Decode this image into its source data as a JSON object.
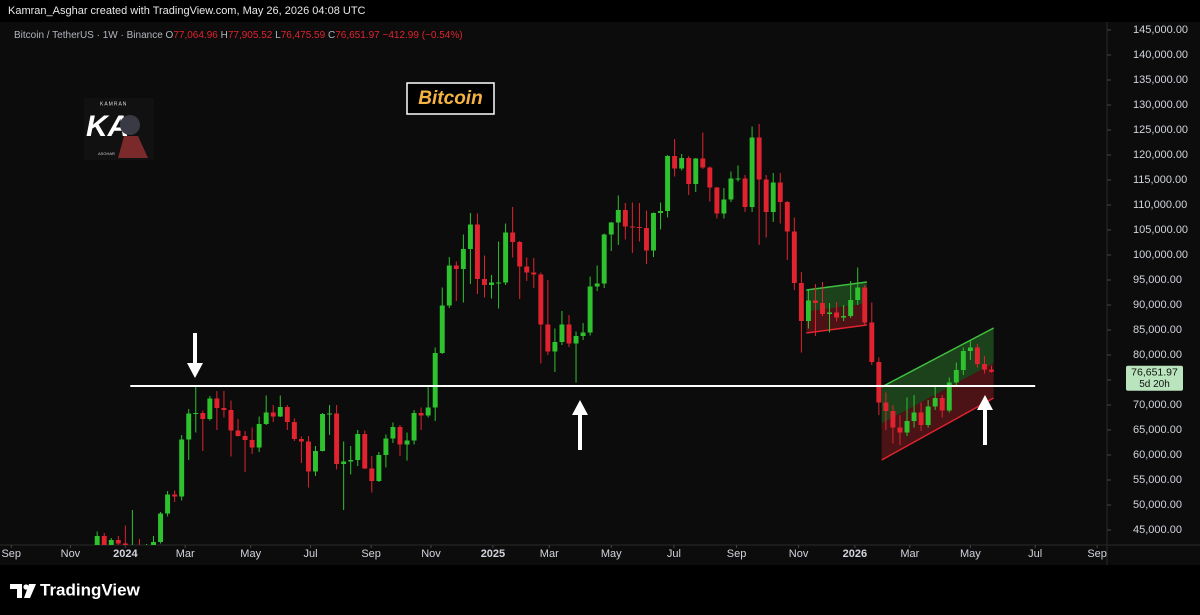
{
  "header": {
    "credit": "Kamran_Asghar created with TradingView.com, May 26, 2026 04:08 UTC"
  },
  "chart_data": {
    "type": "candlestick",
    "symbol": "Bitcoin / TetherUS · 1W · Binance",
    "ohlc_legend": [
      {
        "label": "O",
        "value": "77,064.96"
      },
      {
        "label": "H",
        "value": "77,905.52"
      },
      {
        "label": "L",
        "value": "76,475.59"
      },
      {
        "label": "C",
        "value": "76,651.97"
      }
    ],
    "change": "−412.99 (−0.54%)",
    "title": "Bitcoin",
    "up_color": "#2ec22e",
    "down_color": "#e0232f",
    "x": [
      -4,
      -3,
      -2,
      -1,
      0,
      1,
      2,
      3,
      4,
      5,
      6,
      7,
      8,
      9,
      10,
      11,
      12,
      13,
      14,
      15,
      16,
      17,
      18,
      19,
      20,
      21,
      22,
      23,
      24,
      25,
      26,
      27,
      28,
      29,
      30,
      31,
      32,
      33,
      34,
      35,
      36,
      37,
      38,
      39,
      40,
      41,
      42,
      43,
      44,
      45,
      46,
      47,
      48,
      49,
      50,
      51,
      52,
      53,
      54,
      55,
      56,
      57,
      58,
      59,
      60,
      61,
      62,
      63,
      64,
      65,
      66,
      67,
      68,
      69,
      70,
      71,
      72,
      73,
      74,
      75,
      76,
      77,
      78,
      79,
      80,
      81,
      82,
      83,
      84,
      85,
      86,
      87,
      88,
      89,
      90,
      91,
      92,
      93,
      94,
      95,
      96,
      97,
      98,
      99,
      100,
      101,
      102,
      103,
      104,
      105,
      106,
      107,
      108,
      109,
      110,
      111,
      112,
      113,
      114,
      115,
      116,
      117,
      118,
      119,
      120,
      121,
      122,
      123
    ],
    "ohlc": [
      [
        39900,
        44700,
        39700,
        43800
      ],
      [
        43800,
        44400,
        40300,
        41400
      ],
      [
        41400,
        43400,
        40600,
        43000
      ],
      [
        43000,
        43800,
        41500,
        42300
      ],
      [
        42300,
        45900,
        40800,
        41700
      ],
      [
        41700,
        49000,
        41500,
        41700
      ],
      [
        41700,
        43200,
        40300,
        41600
      ],
      [
        41600,
        42200,
        38500,
        42000
      ],
      [
        42000,
        43800,
        41800,
        42600
      ],
      [
        42600,
        48600,
        42300,
        48300
      ],
      [
        48300,
        52800,
        47700,
        52100
      ],
      [
        52100,
        52900,
        50600,
        51700
      ],
      [
        51700,
        64000,
        50900,
        63100
      ],
      [
        63100,
        69200,
        59000,
        68300
      ],
      [
        68300,
        73800,
        64500,
        68400
      ],
      [
        68400,
        68900,
        60800,
        67200
      ],
      [
        67200,
        71800,
        66900,
        71300
      ],
      [
        71300,
        72800,
        65000,
        69400
      ],
      [
        69400,
        72800,
        67500,
        69000
      ],
      [
        69000,
        70900,
        59700,
        64900
      ],
      [
        64900,
        67200,
        63700,
        63800
      ],
      [
        63800,
        64800,
        56600,
        63000
      ],
      [
        63000,
        65500,
        60200,
        61500
      ],
      [
        61500,
        67700,
        60600,
        66200
      ],
      [
        66200,
        71900,
        66000,
        68500
      ],
      [
        68500,
        70000,
        66600,
        67700
      ],
      [
        67700,
        71900,
        67600,
        69600
      ],
      [
        69600,
        70000,
        65000,
        66600
      ],
      [
        66600,
        67300,
        62800,
        63200
      ],
      [
        63200,
        63700,
        58400,
        62700
      ],
      [
        62700,
        63800,
        53500,
        56700
      ],
      [
        56700,
        61800,
        55800,
        60800
      ],
      [
        60800,
        68400,
        60700,
        68200
      ],
      [
        68200,
        70000,
        64000,
        68300
      ],
      [
        68300,
        70000,
        57100,
        58200
      ],
      [
        58200,
        62700,
        49000,
        58700
      ],
      [
        58700,
        61800,
        56100,
        59000
      ],
      [
        59000,
        65000,
        57800,
        64200
      ],
      [
        64200,
        64900,
        57200,
        57300
      ],
      [
        57300,
        59800,
        52500,
        54800
      ],
      [
        54800,
        60600,
        54600,
        60000
      ],
      [
        60000,
        64100,
        57500,
        63300
      ],
      [
        63300,
        66500,
        62400,
        65600
      ],
      [
        65600,
        66000,
        59800,
        62100
      ],
      [
        62100,
        64500,
        58900,
        62900
      ],
      [
        62900,
        69000,
        62100,
        68400
      ],
      [
        68400,
        69500,
        65000,
        67900
      ],
      [
        67900,
        73600,
        67500,
        69500
      ],
      [
        69500,
        81500,
        66800,
        80400
      ],
      [
        80400,
        93500,
        80200,
        89900
      ],
      [
        89900,
        99600,
        89400,
        97900
      ],
      [
        97900,
        98700,
        90800,
        97200
      ],
      [
        97200,
        104100,
        90500,
        101200
      ],
      [
        101200,
        108400,
        94200,
        106100
      ],
      [
        106100,
        108300,
        92200,
        95200
      ],
      [
        95200,
        99900,
        91500,
        94000
      ],
      [
        94000,
        96000,
        91300,
        94500
      ],
      [
        94500,
        102700,
        89300,
        94500
      ],
      [
        94500,
        106300,
        94000,
        104500
      ],
      [
        104500,
        109600,
        99500,
        102600
      ],
      [
        102600,
        102800,
        91200,
        97700
      ],
      [
        97700,
        99500,
        94800,
        96500
      ],
      [
        96500,
        99400,
        93400,
        96100
      ],
      [
        96100,
        96500,
        78300,
        86100
      ],
      [
        86100,
        95000,
        80000,
        80700
      ],
      [
        80700,
        85300,
        76600,
        82600
      ],
      [
        82600,
        88800,
        82000,
        86100
      ],
      [
        86100,
        88000,
        81600,
        82300
      ],
      [
        82300,
        84700,
        74500,
        83800
      ],
      [
        83800,
        86400,
        83000,
        84500
      ],
      [
        84500,
        95700,
        83900,
        93700
      ],
      [
        93700,
        97900,
        92800,
        94300
      ],
      [
        94300,
        104300,
        93400,
        104100
      ],
      [
        104100,
        106600,
        100800,
        106500
      ],
      [
        106500,
        111900,
        102000,
        109000
      ],
      [
        109000,
        110400,
        103100,
        105700
      ],
      [
        105700,
        110500,
        100400,
        105600
      ],
      [
        105600,
        110400,
        102700,
        105400
      ],
      [
        105400,
        108900,
        98200,
        100900
      ],
      [
        100900,
        108500,
        99600,
        108400
      ],
      [
        108400,
        110500,
        105100,
        108800
      ],
      [
        108800,
        120000,
        107500,
        119800
      ],
      [
        119800,
        123200,
        115700,
        117300
      ],
      [
        117300,
        120200,
        116900,
        119400
      ],
      [
        119400,
        119800,
        112000,
        114200
      ],
      [
        114200,
        119400,
        112600,
        119300
      ],
      [
        119300,
        124500,
        117200,
        117500
      ],
      [
        117500,
        117700,
        110700,
        113500
      ],
      [
        113500,
        113600,
        107300,
        108300
      ],
      [
        108300,
        113400,
        107300,
        111100
      ],
      [
        111100,
        116700,
        110600,
        115300
      ],
      [
        115300,
        117900,
        114700,
        115300
      ],
      [
        115300,
        116000,
        108600,
        109600
      ],
      [
        109600,
        125700,
        108600,
        123500
      ],
      [
        123500,
        126200,
        102000,
        115100
      ],
      [
        115100,
        116000,
        103500,
        108600
      ],
      [
        108600,
        116400,
        106600,
        114500
      ],
      [
        114500,
        116400,
        106300,
        110600
      ],
      [
        110600,
        110800,
        99000,
        104700
      ],
      [
        104700,
        107500,
        93000,
        94400
      ],
      [
        94400,
        96600,
        80500,
        86800
      ],
      [
        86800,
        93100,
        85300,
        90900
      ],
      [
        90900,
        94200,
        83800,
        90400
      ],
      [
        90400,
        94600,
        87800,
        88200
      ],
      [
        88200,
        90400,
        84500,
        88500
      ],
      [
        88500,
        90600,
        86700,
        87500
      ],
      [
        87500,
        90000,
        86800,
        87800
      ],
      [
        87800,
        94800,
        87400,
        91000
      ],
      [
        91000,
        97500,
        90000,
        93500
      ],
      [
        93500,
        94000,
        86000,
        86500
      ],
      [
        86500,
        90500,
        78000,
        78600
      ],
      [
        78600,
        79500,
        68000,
        70500
      ],
      [
        70500,
        72500,
        65000,
        68800
      ],
      [
        68800,
        70000,
        62300,
        65500
      ],
      [
        65500,
        68000,
        62000,
        64500
      ],
      [
        64500,
        71500,
        63800,
        66800
      ],
      [
        66800,
        72000,
        65500,
        68500
      ],
      [
        68500,
        70500,
        64800,
        66000
      ],
      [
        66000,
        71000,
        65500,
        69700
      ],
      [
        69700,
        74000,
        69000,
        71400
      ],
      [
        71400,
        72000,
        67500,
        68900
      ],
      [
        68900,
        75500,
        68500,
        74500
      ],
      [
        74500,
        78500,
        73800,
        77000
      ],
      [
        77000,
        81500,
        76000,
        80800
      ],
      [
        80800,
        82800,
        79000,
        81500
      ],
      [
        81500,
        82200,
        77500,
        78200
      ],
      [
        78200,
        79800,
        76300,
        77064.96
      ],
      [
        77064.96,
        77905.52,
        76475.59,
        76651.97
      ]
    ],
    "xlim": [
      -17.8,
      139.4
    ],
    "ylim": [
      42000,
      146600
    ],
    "xticks": [
      {
        "value": -16.2,
        "label": "Sep"
      },
      {
        "value": -7.8,
        "label": "Nov"
      },
      {
        "value": 0,
        "label": "2024"
      },
      {
        "value": 8.5,
        "label": "Mar"
      },
      {
        "value": 17.8,
        "label": "May"
      },
      {
        "value": 26.3,
        "label": "Jul"
      },
      {
        "value": 34.9,
        "label": "Sep"
      },
      {
        "value": 43.4,
        "label": "Nov"
      },
      {
        "value": 52.2,
        "label": "2025"
      },
      {
        "value": 60.2,
        "label": "Mar"
      },
      {
        "value": 69,
        "label": "May"
      },
      {
        "value": 77.9,
        "label": "Jul"
      },
      {
        "value": 86.8,
        "label": "Sep"
      },
      {
        "value": 95.6,
        "label": "Nov"
      },
      {
        "value": 103.6,
        "label": "2026"
      },
      {
        "value": 111.4,
        "label": "Mar"
      },
      {
        "value": 120,
        "label": "May"
      },
      {
        "value": 129.2,
        "label": "Jul"
      },
      {
        "value": 138,
        "label": "Sep"
      }
    ],
    "yticks": [
      {
        "value": 45000,
        "label": "45,000.00"
      },
      {
        "value": 50000,
        "label": "50,000.00"
      },
      {
        "value": 55000,
        "label": "55,000.00"
      },
      {
        "value": 60000,
        "label": "60,000.00"
      },
      {
        "value": 65000,
        "label": "65,000.00"
      },
      {
        "value": 70000,
        "label": "70,000.00"
      },
      {
        "value": 75000,
        "label": "75,000.00"
      },
      {
        "value": 80000,
        "label": "80,000.00"
      },
      {
        "value": 85000,
        "label": "85,000.00"
      },
      {
        "value": 90000,
        "label": "90,000.00"
      },
      {
        "value": 95000,
        "label": "95,000.00"
      },
      {
        "value": 100000,
        "label": "100,000.00"
      },
      {
        "value": 105000,
        "label": "105,000.00"
      },
      {
        "value": 110000,
        "label": "110,000.00"
      },
      {
        "value": 115000,
        "label": "115,000.00"
      },
      {
        "value": 120000,
        "label": "120,000.00"
      },
      {
        "value": 125000,
        "label": "125,000.00"
      },
      {
        "value": 130000,
        "label": "130,000.00"
      },
      {
        "value": 135000,
        "label": "135,000.00"
      },
      {
        "value": 140000,
        "label": "140,000.00"
      },
      {
        "value": 145000,
        "label": "145,000.00"
      }
    ],
    "last_price": {
      "value": 76651.97,
      "label": "76,651.97",
      "countdown": "5d 20h",
      "color": "#b9e4bd"
    },
    "horizontal_line": {
      "x": [
        0.7,
        129.2
      ],
      "value": 73800,
      "color": "#ffffff"
    },
    "channel_colors": {
      "upper": "#3fbf3f",
      "lower": "#e0232f"
    },
    "channels": [
      {
        "x": [
          96.7,
          105.3
        ],
        "top": [
          93000,
          94600
        ],
        "bottom": [
          84400,
          86000
        ]
      },
      {
        "x": [
          107.4,
          123.3
        ],
        "top": [
          73600,
          85400
        ],
        "bottom": [
          59000,
          71400
        ]
      }
    ]
  },
  "logo": {
    "top": "KAMRAN",
    "text": "KA",
    "bottom": "ASGHAR"
  },
  "footer": {
    "brand": "TradingView"
  }
}
